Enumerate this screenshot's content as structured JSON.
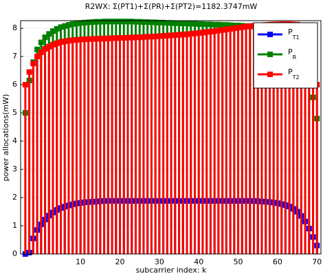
{
  "chart_data": {
    "type": "stem",
    "title": "R2WX: Σ(PT1)+Σ(PR)+Σ(PT2)=1182.3747mW",
    "xlabel": "subcarrier index: k",
    "ylabel": "power allocations(mW)",
    "x": [
      -4,
      -3,
      -2,
      -1,
      0,
      1,
      2,
      3,
      4,
      5,
      6,
      7,
      8,
      9,
      10,
      11,
      12,
      13,
      14,
      15,
      16,
      17,
      18,
      19,
      20,
      21,
      22,
      23,
      24,
      25,
      26,
      27,
      28,
      29,
      30,
      31,
      32,
      33,
      34,
      35,
      36,
      37,
      38,
      39,
      40,
      41,
      42,
      43,
      44,
      45,
      46,
      47,
      48,
      49,
      50,
      51,
      52,
      53,
      54,
      55,
      56,
      57,
      58,
      59,
      60,
      61,
      62,
      63,
      64,
      65,
      66,
      67,
      68,
      69,
      70
    ],
    "series": [
      {
        "name": "PT1",
        "color": "#0000ff",
        "values": [
          0,
          0.05,
          0.55,
          0.85,
          1.05,
          1.22,
          1.36,
          1.47,
          1.56,
          1.63,
          1.68,
          1.72,
          1.76,
          1.79,
          1.81,
          1.83,
          1.84,
          1.85,
          1.86,
          1.87,
          1.88,
          1.88,
          1.88,
          1.88,
          1.88,
          1.88,
          1.88,
          1.88,
          1.88,
          1.88,
          1.88,
          1.88,
          1.88,
          1.88,
          1.88,
          1.88,
          1.88,
          1.88,
          1.88,
          1.88,
          1.88,
          1.88,
          1.88,
          1.88,
          1.88,
          1.88,
          1.88,
          1.88,
          1.88,
          1.88,
          1.88,
          1.88,
          1.88,
          1.88,
          1.88,
          1.88,
          1.88,
          1.88,
          1.88,
          1.87,
          1.86,
          1.85,
          1.84,
          1.82,
          1.8,
          1.77,
          1.73,
          1.68,
          1.6,
          1.5,
          1.35,
          1.15,
          0.9,
          0.6,
          0.3
        ]
      },
      {
        "name": "PR",
        "color": "#008000",
        "values": [
          5.0,
          6.15,
          6.8,
          7.25,
          7.5,
          7.68,
          7.8,
          7.9,
          7.98,
          8.04,
          8.08,
          8.12,
          8.15,
          8.17,
          8.19,
          8.2,
          8.21,
          8.22,
          8.23,
          8.23,
          8.24,
          8.24,
          8.24,
          8.24,
          8.24,
          8.24,
          8.24,
          8.24,
          8.23,
          8.23,
          8.22,
          8.22,
          8.21,
          8.21,
          8.2,
          8.2,
          8.19,
          8.19,
          8.18,
          8.18,
          8.17,
          8.17,
          8.16,
          8.16,
          8.15,
          8.15,
          8.14,
          8.14,
          8.13,
          8.13,
          8.12,
          8.12,
          8.11,
          8.1,
          8.1,
          8.09,
          8.08,
          8.07,
          8.06,
          8.05,
          8.04,
          8.02,
          8.0,
          7.98,
          7.95,
          7.9,
          7.85,
          7.75,
          7.6,
          7.4,
          7.1,
          6.6,
          6.0,
          5.55,
          4.8
        ]
      },
      {
        "name": "PT2",
        "color": "#ff0000",
        "values": [
          6.0,
          6.45,
          6.75,
          7.0,
          7.15,
          7.27,
          7.35,
          7.42,
          7.47,
          7.51,
          7.54,
          7.56,
          7.58,
          7.59,
          7.6,
          7.61,
          7.62,
          7.62,
          7.63,
          7.63,
          7.64,
          7.64,
          7.65,
          7.65,
          7.66,
          7.66,
          7.67,
          7.67,
          7.68,
          7.68,
          7.69,
          7.7,
          7.7,
          7.71,
          7.72,
          7.73,
          7.74,
          7.75,
          7.76,
          7.77,
          7.78,
          7.79,
          7.8,
          7.82,
          7.83,
          7.85,
          7.87,
          7.88,
          7.9,
          7.92,
          7.94,
          7.96,
          7.98,
          8.0,
          8.02,
          8.04,
          8.06,
          8.08,
          8.09,
          8.1,
          8.11,
          8.12,
          8.13,
          8.14,
          8.14,
          8.15,
          8.15,
          8.15,
          8.14,
          8.13,
          8.1,
          7.9,
          7.5,
          7.05,
          6.0
        ]
      }
    ],
    "xlim": [
      -5.2,
      71
    ],
    "ylim": [
      0,
      8.27
    ],
    "xticks": [
      10,
      20,
      30,
      40,
      50,
      60,
      70
    ],
    "yticks": [
      0,
      1,
      2,
      3,
      4,
      5,
      6,
      7,
      8
    ],
    "grid": true,
    "legend": "top-right"
  }
}
